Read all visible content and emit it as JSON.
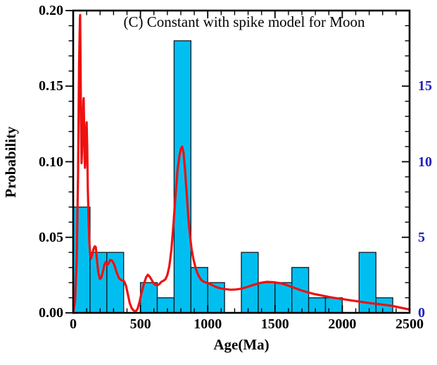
{
  "colors": {
    "bar_fill": "#00bff0",
    "bar_edge": "#18242f",
    "curve": "#ee1111",
    "right_axis_text": "#2222bb",
    "frame": "#000000",
    "text": "#000000"
  },
  "chart_data": {
    "type": "bar+line",
    "title": "(C) Constant with spike model for Moon",
    "xlabel": "Age(Ma)",
    "ylabel_left": "Probability",
    "xlim": [
      0,
      2500
    ],
    "ylim_left": [
      0,
      0.2
    ],
    "ylim_right": [
      0,
      20
    ],
    "grid": "off",
    "x_tick_values": [
      0,
      500,
      1000,
      1500,
      2000,
      2500
    ],
    "x_tick_labels": [
      "0",
      "500",
      "1000",
      "1500",
      "2000",
      "2500"
    ],
    "x_minor_step": 100,
    "y_left_tick_values": [
      0,
      0.05,
      0.1,
      0.15,
      0.2
    ],
    "y_left_tick_labels": [
      "0.00",
      "0.05",
      "0.10",
      "0.15",
      "0.20"
    ],
    "y_left_minor_step": 0.01,
    "y_right_tick_values": [
      0,
      5,
      10,
      15
    ],
    "y_right_tick_labels": [
      "0",
      "5",
      "10",
      "15"
    ],
    "y_right_minor_step": 1,
    "histogram": {
      "bin_start": 0,
      "bin_width": 125,
      "bin_edges": [
        0,
        125,
        250,
        375,
        500,
        625,
        750,
        875,
        1000,
        1125,
        1250,
        1375,
        1500,
        1625,
        1750,
        1875,
        2000,
        2125,
        2250,
        2375,
        2500
      ],
      "probabilities": [
        0.07,
        0.04,
        0.04,
        0,
        0.02,
        0.01,
        0.18,
        0.03,
        0.02,
        0,
        0.04,
        0.02,
        0.02,
        0.03,
        0.01,
        0.01,
        0,
        0.04,
        0.01,
        0
      ],
      "counts": [
        7,
        4,
        4,
        0,
        2,
        1,
        18,
        3,
        2,
        0,
        4,
        2,
        2,
        3,
        1,
        1,
        0,
        4,
        1,
        0
      ]
    },
    "curve": {
      "name": "probability-density",
      "points": [
        [
          0,
          0
        ],
        [
          14,
          0.008
        ],
        [
          26,
          0.035
        ],
        [
          36,
          0.09
        ],
        [
          44,
          0.165
        ],
        [
          50,
          0.195
        ],
        [
          52,
          0.197
        ],
        [
          54,
          0.175
        ],
        [
          58,
          0.128
        ],
        [
          62,
          0.099
        ],
        [
          66,
          0.107
        ],
        [
          72,
          0.128
        ],
        [
          76,
          0.14
        ],
        [
          78,
          0.142
        ],
        [
          81,
          0.125
        ],
        [
          85,
          0.103
        ],
        [
          88,
          0.096
        ],
        [
          92,
          0.107
        ],
        [
          97,
          0.12
        ],
        [
          100,
          0.126
        ],
        [
          104,
          0.11
        ],
        [
          109,
          0.082
        ],
        [
          115,
          0.06
        ],
        [
          121,
          0.046
        ],
        [
          127,
          0.038
        ],
        [
          133,
          0.036
        ],
        [
          140,
          0.038
        ],
        [
          150,
          0.042
        ],
        [
          160,
          0.044
        ],
        [
          168,
          0.0435
        ],
        [
          178,
          0.034
        ],
        [
          188,
          0.026
        ],
        [
          198,
          0.0225
        ],
        [
          208,
          0.023
        ],
        [
          220,
          0.027
        ],
        [
          232,
          0.032
        ],
        [
          242,
          0.0335
        ],
        [
          252,
          0.0315
        ],
        [
          262,
          0.0325
        ],
        [
          275,
          0.035
        ],
        [
          290,
          0.0345
        ],
        [
          305,
          0.032
        ],
        [
          322,
          0.027
        ],
        [
          340,
          0.023
        ],
        [
          360,
          0.0215
        ],
        [
          378,
          0.021
        ],
        [
          392,
          0.018
        ],
        [
          405,
          0.013
        ],
        [
          420,
          0.0065
        ],
        [
          435,
          0.003
        ],
        [
          450,
          0.0015
        ],
        [
          465,
          0.001
        ],
        [
          478,
          0.0025
        ],
        [
          492,
          0.007
        ],
        [
          508,
          0.013
        ],
        [
          525,
          0.019
        ],
        [
          542,
          0.0235
        ],
        [
          555,
          0.0252
        ],
        [
          568,
          0.024
        ],
        [
          582,
          0.022
        ],
        [
          598,
          0.0195
        ],
        [
          612,
          0.0185
        ],
        [
          625,
          0.0182
        ],
        [
          640,
          0.019
        ],
        [
          655,
          0.0205
        ],
        [
          670,
          0.0212
        ],
        [
          685,
          0.0222
        ],
        [
          700,
          0.025
        ],
        [
          715,
          0.031
        ],
        [
          730,
          0.042
        ],
        [
          745,
          0.058
        ],
        [
          760,
          0.077
        ],
        [
          775,
          0.094
        ],
        [
          790,
          0.104
        ],
        [
          802,
          0.109
        ],
        [
          810,
          0.11
        ],
        [
          820,
          0.106
        ],
        [
          830,
          0.096
        ],
        [
          842,
          0.081
        ],
        [
          855,
          0.064
        ],
        [
          868,
          0.051
        ],
        [
          880,
          0.042
        ],
        [
          895,
          0.035
        ],
        [
          912,
          0.029
        ],
        [
          930,
          0.025
        ],
        [
          950,
          0.022
        ],
        [
          972,
          0.0205
        ],
        [
          1000,
          0.0197
        ],
        [
          1030,
          0.0185
        ],
        [
          1060,
          0.0172
        ],
        [
          1095,
          0.0162
        ],
        [
          1130,
          0.0157
        ],
        [
          1170,
          0.0153
        ],
        [
          1210,
          0.0155
        ],
        [
          1250,
          0.016
        ],
        [
          1295,
          0.0172
        ],
        [
          1340,
          0.0185
        ],
        [
          1390,
          0.0198
        ],
        [
          1440,
          0.0205
        ],
        [
          1490,
          0.0203
        ],
        [
          1540,
          0.0196
        ],
        [
          1590,
          0.0183
        ],
        [
          1640,
          0.0167
        ],
        [
          1690,
          0.015
        ],
        [
          1740,
          0.0137
        ],
        [
          1790,
          0.0125
        ],
        [
          1845,
          0.0115
        ],
        [
          1900,
          0.0105
        ],
        [
          1955,
          0.0097
        ],
        [
          2010,
          0.009
        ],
        [
          2070,
          0.0082
        ],
        [
          2130,
          0.0074
        ],
        [
          2190,
          0.0066
        ],
        [
          2250,
          0.006
        ],
        [
          2310,
          0.0053
        ],
        [
          2370,
          0.0046
        ],
        [
          2430,
          0.0035
        ],
        [
          2500,
          0.0022
        ]
      ]
    }
  }
}
